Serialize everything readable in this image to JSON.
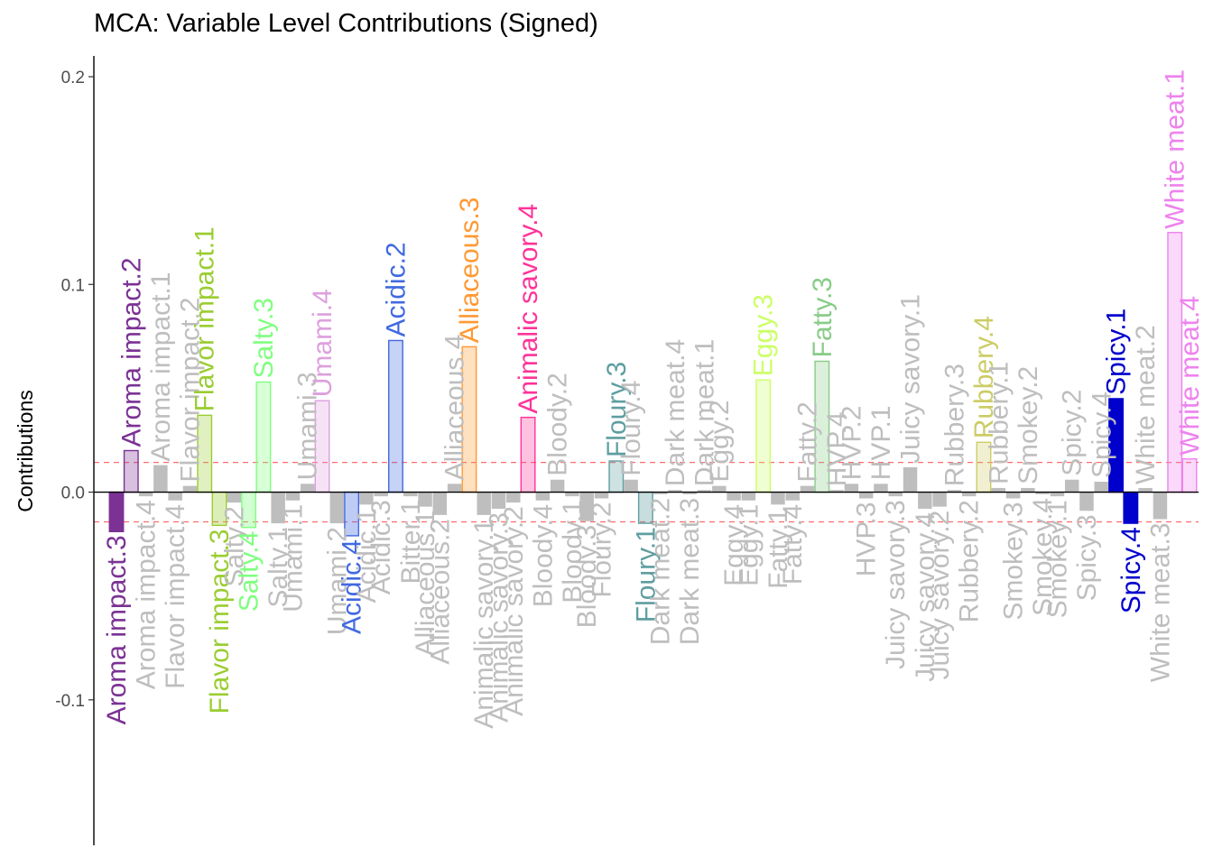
{
  "chart_data": {
    "type": "bar",
    "title": "MCA: Variable Level Contributions (Signed)",
    "xlabel": "",
    "ylabel": "Contributions",
    "ylim": [
      -0.17,
      0.21
    ],
    "yticks": [
      -0.1,
      0.0,
      0.1,
      0.2
    ],
    "ytick_labels": [
      "-0.1",
      "0.0",
      "0.1",
      "0.2"
    ],
    "threshold": 0.0143,
    "threshold_color": "#ff6b6b",
    "grid": false,
    "legend": "none",
    "muted_color": "#bebebe",
    "bars": [
      {
        "label": "Aroma impact.3",
        "value": -0.019,
        "color": "#7b3294",
        "highlight": true
      },
      {
        "label": "Aroma impact.2",
        "value": 0.02,
        "color": "#7b3294",
        "highlight": true
      },
      {
        "label": "Aroma impact.4",
        "value": -0.002,
        "color": "#bebebe",
        "highlight": false
      },
      {
        "label": "Aroma impact.1",
        "value": 0.013,
        "color": "#bebebe",
        "highlight": false
      },
      {
        "label": "Flavor impact.4",
        "value": -0.004,
        "color": "#bebebe",
        "highlight": false
      },
      {
        "label": "Flavor impact.2",
        "value": 0.003,
        "color": "#bebebe",
        "highlight": false
      },
      {
        "label": "Flavor impact.1",
        "value": 0.037,
        "color": "#9acd32",
        "highlight": true
      },
      {
        "label": "Flavor impact.3",
        "value": -0.016,
        "color": "#9acd32",
        "highlight": true
      },
      {
        "label": "Salty.2",
        "value": -0.005,
        "color": "#bebebe",
        "highlight": false
      },
      {
        "label": "Salty.4",
        "value": -0.017,
        "color": "#7fff7f",
        "highlight": true
      },
      {
        "label": "Salty.3",
        "value": 0.053,
        "color": "#7fff7f",
        "highlight": true
      },
      {
        "label": "Salty.1",
        "value": -0.015,
        "color": "#bebebe",
        "highlight": false
      },
      {
        "label": "Umami.1",
        "value": -0.004,
        "color": "#bebebe",
        "highlight": false
      },
      {
        "label": "Umami.3",
        "value": 0.004,
        "color": "#bebebe",
        "highlight": false
      },
      {
        "label": "Umami.4",
        "value": 0.044,
        "color": "#dda0dd",
        "highlight": true
      },
      {
        "label": "Umami.2",
        "value": -0.015,
        "color": "#bebebe",
        "highlight": false
      },
      {
        "label": "Acidic.4",
        "value": -0.021,
        "color": "#4169e1",
        "highlight": true
      },
      {
        "label": "Acidic.1",
        "value": -0.006,
        "color": "#bebebe",
        "highlight": false
      },
      {
        "label": "Acidic.3",
        "value": -0.002,
        "color": "#bebebe",
        "highlight": false
      },
      {
        "label": "Acidic.2",
        "value": 0.073,
        "color": "#4169e1",
        "highlight": true
      },
      {
        "label": "Bitter.1",
        "value": -0.002,
        "color": "#bebebe",
        "highlight": false
      },
      {
        "label": "Alliaceous.1",
        "value": -0.007,
        "color": "#bebebe",
        "highlight": false
      },
      {
        "label": "Alliaceous.2",
        "value": -0.011,
        "color": "#bebebe",
        "highlight": false
      },
      {
        "label": "Alliaceous.4",
        "value": 0.004,
        "color": "#bebebe",
        "highlight": false
      },
      {
        "label": "Alliaceous.3",
        "value": 0.07,
        "color": "#ff9933",
        "highlight": true
      },
      {
        "label": "Animalic savory.1",
        "value": -0.011,
        "color": "#bebebe",
        "highlight": false
      },
      {
        "label": "Animalic savory.3",
        "value": -0.008,
        "color": "#bebebe",
        "highlight": false
      },
      {
        "label": "Animalic savory.2",
        "value": -0.005,
        "color": "#bebebe",
        "highlight": false
      },
      {
        "label": "Animalic savory.4",
        "value": 0.036,
        "color": "#ff3399",
        "highlight": true
      },
      {
        "label": "Bloody.4",
        "value": -0.004,
        "color": "#bebebe",
        "highlight": false
      },
      {
        "label": "Bloody.2",
        "value": 0.006,
        "color": "#bebebe",
        "highlight": false
      },
      {
        "label": "Bloody.1",
        "value": -0.002,
        "color": "#bebebe",
        "highlight": false
      },
      {
        "label": "Bloody.3",
        "value": -0.014,
        "color": "#bebebe",
        "highlight": false
      },
      {
        "label": "Floury.2",
        "value": -0.003,
        "color": "#bebebe",
        "highlight": false
      },
      {
        "label": "Floury.3",
        "value": 0.015,
        "color": "#5f9ea0",
        "highlight": true
      },
      {
        "label": "Floury.4",
        "value": 0.006,
        "color": "#bebebe",
        "highlight": false
      },
      {
        "label": "Floury.1",
        "value": -0.015,
        "color": "#5f9ea0",
        "highlight": true
      },
      {
        "label": "Dark meat.2",
        "value": -0.001,
        "color": "#bebebe",
        "highlight": false
      },
      {
        "label": "Dark meat.4",
        "value": 0.001,
        "color": "#bebebe",
        "highlight": false
      },
      {
        "label": "Dark meat.3",
        "value": -0.001,
        "color": "#bebebe",
        "highlight": false
      },
      {
        "label": "Dark meat.1",
        "value": 0.001,
        "color": "#bebebe",
        "highlight": false
      },
      {
        "label": "Eggy.2",
        "value": 0.003,
        "color": "#bebebe",
        "highlight": false
      },
      {
        "label": "Eggy.4",
        "value": -0.004,
        "color": "#bebebe",
        "highlight": false
      },
      {
        "label": "Eggy.1",
        "value": -0.004,
        "color": "#bebebe",
        "highlight": false
      },
      {
        "label": "Eggy.3",
        "value": 0.054,
        "color": "#ccff66",
        "highlight": true
      },
      {
        "label": "Fatty.1",
        "value": -0.006,
        "color": "#bebebe",
        "highlight": false
      },
      {
        "label": "Fatty.4",
        "value": -0.004,
        "color": "#bebebe",
        "highlight": false
      },
      {
        "label": "Fatty.2",
        "value": 0.003,
        "color": "#bebebe",
        "highlight": false
      },
      {
        "label": "Fatty.3",
        "value": 0.063,
        "color": "#88cc88",
        "highlight": true
      },
      {
        "label": "HVP.4",
        "value": 0.001,
        "color": "#bebebe",
        "highlight": false
      },
      {
        "label": "HVP.2",
        "value": 0.004,
        "color": "#bebebe",
        "highlight": false
      },
      {
        "label": "HVP.3",
        "value": -0.003,
        "color": "#bebebe",
        "highlight": false
      },
      {
        "label": "HVP.1",
        "value": 0.004,
        "color": "#bebebe",
        "highlight": false
      },
      {
        "label": "Juicy savory.3",
        "value": -0.002,
        "color": "#bebebe",
        "highlight": false
      },
      {
        "label": "Juicy savory.1",
        "value": 0.012,
        "color": "#bebebe",
        "highlight": false
      },
      {
        "label": "Juicy savory.4",
        "value": -0.008,
        "color": "#bebebe",
        "highlight": false
      },
      {
        "label": "Juicy savory.2",
        "value": -0.007,
        "color": "#bebebe",
        "highlight": false
      },
      {
        "label": "Rubbery.3",
        "value": 0.001,
        "color": "#bebebe",
        "highlight": false
      },
      {
        "label": "Rubbery.2",
        "value": -0.002,
        "color": "#bebebe",
        "highlight": false
      },
      {
        "label": "Rubbery.4",
        "value": 0.024,
        "color": "#cccc66",
        "highlight": true
      },
      {
        "label": "Rubbery.1",
        "value": 0.002,
        "color": "#bebebe",
        "highlight": false
      },
      {
        "label": "Smokey.3",
        "value": -0.003,
        "color": "#bebebe",
        "highlight": false
      },
      {
        "label": "Smokey.2",
        "value": 0.002,
        "color": "#bebebe",
        "highlight": false
      },
      {
        "label": "Smokey.4",
        "value": -0.001,
        "color": "#bebebe",
        "highlight": false
      },
      {
        "label": "Smokey.1",
        "value": -0.002,
        "color": "#bebebe",
        "highlight": false
      },
      {
        "label": "Spicy.2",
        "value": 0.006,
        "color": "#bebebe",
        "highlight": false
      },
      {
        "label": "Spicy.3",
        "value": -0.009,
        "color": "#bebebe",
        "highlight": false
      },
      {
        "label": "Spicy.4",
        "value": 0.005,
        "color": "#bebebe",
        "highlight": false
      },
      {
        "label": "Spicy.1",
        "value": 0.045,
        "color": "#0000cd",
        "highlight": true
      },
      {
        "label": "Spicy.4",
        "value": -0.015,
        "color": "#0000cd",
        "highlight": true
      },
      {
        "label": "White meat.2",
        "value": 0.002,
        "color": "#bebebe",
        "highlight": false
      },
      {
        "label": "White meat.3",
        "value": -0.013,
        "color": "#bebebe",
        "highlight": false
      },
      {
        "label": "White meat.1",
        "value": 0.125,
        "color": "#ee82ee",
        "highlight": true
      },
      {
        "label": "White meat.4",
        "value": 0.016,
        "color": "#ee82ee",
        "highlight": true
      }
    ]
  }
}
